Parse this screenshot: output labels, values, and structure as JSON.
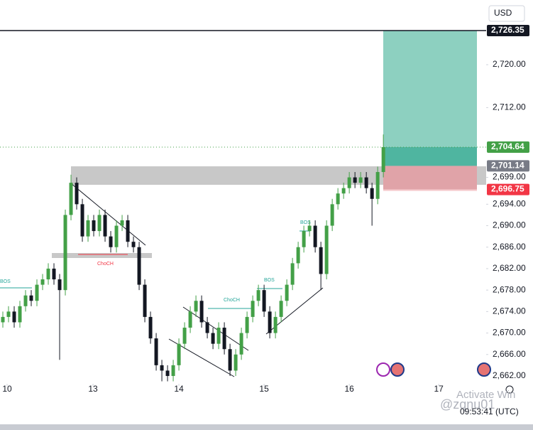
{
  "chart_data": {
    "type": "candlestick",
    "x": [
      0,
      1,
      2,
      3,
      4,
      5,
      6,
      7,
      8,
      9,
      10,
      11,
      12,
      13,
      14,
      15,
      16,
      17,
      18,
      19,
      20,
      21,
      22,
      23,
      24,
      25,
      26,
      27,
      28,
      29,
      30,
      31,
      32,
      33,
      34,
      35,
      36,
      37,
      38,
      39,
      40,
      41,
      42,
      43,
      44,
      45,
      46,
      47,
      48,
      49,
      50,
      51,
      52,
      53,
      54,
      55,
      56,
      57,
      58,
      59,
      60,
      61,
      62,
      63,
      64,
      65,
      66,
      67
    ],
    "open": [
      2672,
      2673,
      2674,
      2672,
      2675,
      2677,
      2676,
      2679,
      2680,
      2682,
      2680,
      2678,
      2692,
      2698,
      2694,
      2688,
      2691,
      2689,
      2692,
      2688,
      2686,
      2690,
      2691,
      2687,
      2686,
      2679,
      2673,
      2669,
      2664,
      2663,
      2662,
      2664,
      2668,
      2671,
      2674,
      2676,
      2672,
      2670,
      2668,
      2671,
      2667,
      2663,
      2666,
      2670,
      2673,
      2676,
      2678,
      2674,
      2670,
      2673,
      2676,
      2679,
      2683,
      2686,
      2689,
      2690,
      2686,
      2681,
      2690,
      2694,
      2696,
      2697,
      2699,
      2698,
      2699,
      2697,
      2695,
      2700
    ],
    "high": [
      2674,
      2675,
      2675,
      2676,
      2678,
      2678,
      2680,
      2681,
      2683,
      2683,
      2681,
      2693,
      2699.5,
      2699,
      2695,
      2692,
      2692,
      2693,
      2693,
      2689,
      2691,
      2692,
      2692,
      2688,
      2687,
      2680,
      2674,
      2670,
      2665,
      2664,
      2665,
      2669,
      2672,
      2675,
      2677,
      2677,
      2673,
      2671,
      2672,
      2672,
      2668,
      2667,
      2671,
      2674,
      2677,
      2679,
      2679,
      2675,
      2674,
      2677,
      2680,
      2684,
      2687,
      2690,
      2691,
      2691,
      2687,
      2691,
      2695,
      2697,
      2698,
      2700,
      2700,
      2700,
      2700,
      2698,
      2701,
      2707
    ],
    "low": [
      2671,
      2672,
      2671,
      2671,
      2674,
      2675,
      2675,
      2678,
      2679,
      2679,
      2665,
      2677,
      2691,
      2693,
      2687,
      2687,
      2688,
      2688,
      2687,
      2685,
      2685,
      2689,
      2686,
      2685,
      2678,
      2672,
      2668,
      2663,
      2661,
      2661,
      2661,
      2663,
      2667,
      2670,
      2673,
      2671,
      2669,
      2667,
      2667,
      2666,
      2662,
      2662,
      2665,
      2669,
      2672,
      2675,
      2673,
      2669,
      2669,
      2672,
      2675,
      2678,
      2682,
      2685,
      2688,
      2685,
      2678,
      2680,
      2689,
      2693,
      2695,
      2696,
      2697,
      2697,
      2696,
      2690,
      2694,
      2699
    ],
    "close": [
      2673,
      2674,
      2672,
      2675,
      2677,
      2676,
      2679,
      2680,
      2682,
      2680,
      2678,
      2692,
      2698,
      2694,
      2688,
      2691,
      2689,
      2692,
      2688,
      2686,
      2690,
      2691,
      2687,
      2686,
      2679,
      2673,
      2669,
      2664,
      2663,
      2662,
      2664,
      2668,
      2671,
      2674,
      2676,
      2672,
      2670,
      2668,
      2671,
      2667,
      2663,
      2666,
      2670,
      2673,
      2676,
      2678,
      2674,
      2670,
      2673,
      2676,
      2679,
      2683,
      2686,
      2689,
      2690,
      2686,
      2681,
      2690,
      2694,
      2696,
      2697,
      2699,
      2698,
      2699,
      2697,
      2695,
      2700,
      2704.64
    ],
    "up_color": "#43a047",
    "down_color": "#131722",
    "xlim": [
      -0.5,
      85.1
    ],
    "xticks": [
      {
        "value": 0.75,
        "label": "10"
      },
      {
        "value": 15.875,
        "label": "13"
      },
      {
        "value": 31,
        "label": "14"
      },
      {
        "value": 46,
        "label": "15"
      },
      {
        "value": 61,
        "label": "16"
      },
      {
        "value": 76.75,
        "label": "17"
      }
    ],
    "ylim": [
      2660.54,
      2732.05
    ],
    "yticks": [
      {
        "value": 2662,
        "label": "2,662.00"
      },
      {
        "value": 2666,
        "label": "2,666.00"
      },
      {
        "value": 2670,
        "label": "2,670.00"
      },
      {
        "value": 2674,
        "label": "2,674.00"
      },
      {
        "value": 2678,
        "label": "2,678.00"
      },
      {
        "value": 2682,
        "label": "2,682.00"
      },
      {
        "value": 2686,
        "label": "2,686.00"
      },
      {
        "value": 2690,
        "label": "2,690.00"
      },
      {
        "value": 2694,
        "label": "2,694.00"
      },
      {
        "value": 2699,
        "label": "2,699.00"
      },
      {
        "value": 2712,
        "label": "2,712.00"
      },
      {
        "value": 2720,
        "label": "2,720.00"
      }
    ],
    "price_labels": [
      {
        "value": 2726.35,
        "label": "2,726.35",
        "color": "#131722"
      },
      {
        "value": 2704.64,
        "label": "2,704.64",
        "color": "#43a047"
      },
      {
        "value": 2701.14,
        "label": "2,701.14",
        "color": "#787b86"
      },
      {
        "value": 2696.75,
        "label": "2,696.75",
        "color": "#f23645"
      }
    ]
  },
  "header": {
    "currency": "USD"
  },
  "annotations": [
    "BOS",
    "ChoCH",
    "ChoCH",
    "BOS",
    "BOS"
  ],
  "footer": {
    "time": "09:53:41 (UTC)",
    "watermark": "@zqnu01",
    "notice": "Activate Win"
  }
}
